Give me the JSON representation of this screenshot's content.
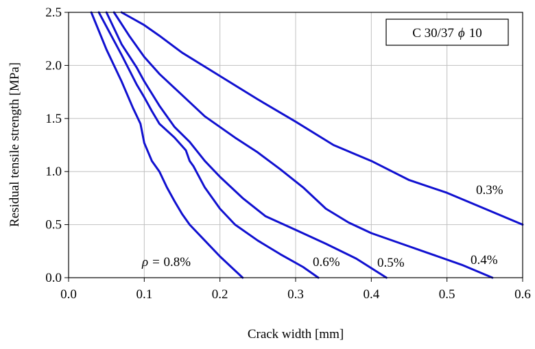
{
  "chart_data": {
    "type": "line",
    "xlabel": "Crack width [mm]",
    "ylabel": "Residual tensile strength [MPa]",
    "xlim": [
      0.0,
      0.6
    ],
    "ylim": [
      0.0,
      2.5
    ],
    "x_ticks": [
      "0.0",
      "0.1",
      "0.2",
      "0.3",
      "0.4",
      "0.5",
      "0.6"
    ],
    "y_ticks": [
      "0.0",
      "0.5",
      "1.0",
      "1.5",
      "2.0",
      "2.5"
    ],
    "grid": true,
    "legend_box": {
      "prefix": "C 30/37",
      "symbol": "ϕ",
      "suffix": "10"
    },
    "line_color": "#1010d0",
    "series": [
      {
        "name": "0.8%",
        "label_prefix": "ρ = ",
        "x": [
          0.03,
          0.05,
          0.07,
          0.085,
          0.095,
          0.1,
          0.11,
          0.12,
          0.13,
          0.14,
          0.15,
          0.16,
          0.18,
          0.2,
          0.215,
          0.23
        ],
        "y": [
          2.5,
          2.15,
          1.85,
          1.6,
          1.45,
          1.27,
          1.1,
          1.0,
          0.85,
          0.72,
          0.6,
          0.5,
          0.35,
          0.2,
          0.1,
          0.0
        ]
      },
      {
        "name": "0.6%",
        "x": [
          0.04,
          0.07,
          0.09,
          0.1,
          0.11,
          0.12,
          0.14,
          0.155,
          0.16,
          0.165,
          0.18,
          0.2,
          0.22,
          0.25,
          0.28,
          0.31,
          0.33
        ],
        "y": [
          2.5,
          2.1,
          1.82,
          1.7,
          1.57,
          1.45,
          1.32,
          1.2,
          1.1,
          1.05,
          0.85,
          0.65,
          0.5,
          0.35,
          0.22,
          0.1,
          0.0
        ]
      },
      {
        "name": "0.5%",
        "x": [
          0.05,
          0.07,
          0.09,
          0.1,
          0.12,
          0.14,
          0.16,
          0.18,
          0.2,
          0.23,
          0.26,
          0.3,
          0.34,
          0.38,
          0.42
        ],
        "y": [
          2.5,
          2.2,
          1.98,
          1.85,
          1.62,
          1.42,
          1.28,
          1.1,
          0.95,
          0.75,
          0.58,
          0.45,
          0.32,
          0.18,
          0.0
        ]
      },
      {
        "name": "0.4%",
        "x": [
          0.06,
          0.08,
          0.1,
          0.12,
          0.15,
          0.18,
          0.22,
          0.25,
          0.28,
          0.31,
          0.34,
          0.37,
          0.4,
          0.44,
          0.48,
          0.52,
          0.56
        ],
        "y": [
          2.5,
          2.28,
          2.08,
          1.92,
          1.72,
          1.52,
          1.32,
          1.18,
          1.02,
          0.85,
          0.65,
          0.52,
          0.42,
          0.32,
          0.22,
          0.12,
          0.0
        ]
      },
      {
        "name": "0.3%",
        "x": [
          0.07,
          0.1,
          0.12,
          0.15,
          0.2,
          0.25,
          0.3,
          0.35,
          0.39,
          0.4,
          0.45,
          0.5,
          0.55,
          0.6
        ],
        "y": [
          2.5,
          2.38,
          2.28,
          2.12,
          1.9,
          1.68,
          1.47,
          1.25,
          1.13,
          1.1,
          0.92,
          0.8,
          0.65,
          0.5
        ]
      }
    ]
  }
}
